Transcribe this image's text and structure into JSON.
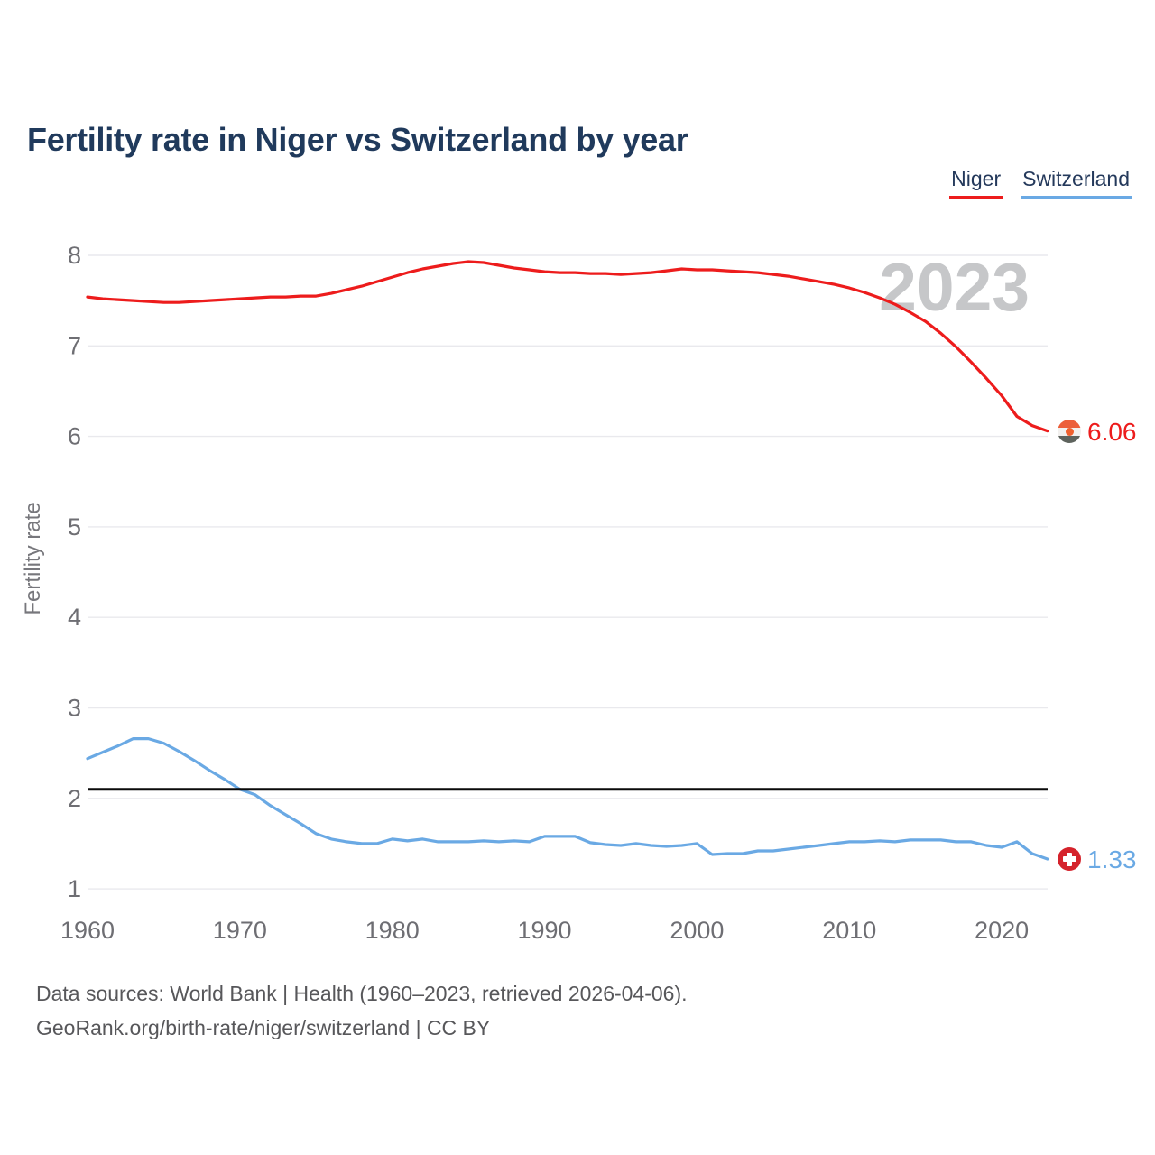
{
  "title": "Fertility rate in Niger vs Switzerland by year",
  "watermark": "2023",
  "legend": [
    {
      "label": "Niger",
      "color": "#ed1c1c"
    },
    {
      "label": "Switzerland",
      "color": "#6aa9e4"
    }
  ],
  "y_axis": {
    "title": "Fertility rate",
    "ticks": [
      8,
      7,
      6,
      5,
      4,
      3,
      2,
      1
    ]
  },
  "x_axis": {
    "ticks": [
      1960,
      1970,
      1980,
      1990,
      2000,
      2010,
      2020
    ]
  },
  "reference_line": {
    "value": 2.1,
    "color": "#0a0a0a"
  },
  "end_labels": [
    {
      "value": "6.06",
      "flag": "niger-flag-icon",
      "series": "Niger"
    },
    {
      "value": "1.33",
      "flag": "swiss-flag-icon",
      "series": "Switzerland"
    }
  ],
  "footer": {
    "line1": "Data sources: World Bank | Health (1960–2023, retrieved 2026-04-06).",
    "line2": "GeoRank.org/birth-rate/niger/switzerland | CC BY"
  },
  "chart_data": {
    "type": "line",
    "title": "Fertility rate in Niger vs Switzerland by year",
    "xlabel": "",
    "ylabel": "Fertility rate",
    "ylim": [
      1,
      8
    ],
    "xlim": [
      1960,
      2023
    ],
    "grid": "horizontal",
    "legend_position": "top-right",
    "x": [
      1960,
      1961,
      1962,
      1963,
      1964,
      1965,
      1966,
      1967,
      1968,
      1969,
      1970,
      1971,
      1972,
      1973,
      1974,
      1975,
      1976,
      1977,
      1978,
      1979,
      1980,
      1981,
      1982,
      1983,
      1984,
      1985,
      1986,
      1987,
      1988,
      1989,
      1990,
      1991,
      1992,
      1993,
      1994,
      1995,
      1996,
      1997,
      1998,
      1999,
      2000,
      2001,
      2002,
      2003,
      2004,
      2005,
      2006,
      2007,
      2008,
      2009,
      2010,
      2011,
      2012,
      2013,
      2014,
      2015,
      2016,
      2017,
      2018,
      2019,
      2020,
      2021,
      2022,
      2023
    ],
    "series": [
      {
        "name": "Niger",
        "color": "#ed1c1c",
        "last_value": 6.06,
        "values": [
          7.54,
          7.52,
          7.51,
          7.5,
          7.49,
          7.48,
          7.48,
          7.49,
          7.5,
          7.51,
          7.52,
          7.53,
          7.54,
          7.54,
          7.55,
          7.55,
          7.58,
          7.62,
          7.66,
          7.71,
          7.76,
          7.81,
          7.85,
          7.88,
          7.91,
          7.93,
          7.92,
          7.89,
          7.86,
          7.84,
          7.82,
          7.81,
          7.81,
          7.8,
          7.8,
          7.79,
          7.8,
          7.81,
          7.83,
          7.85,
          7.84,
          7.84,
          7.83,
          7.82,
          7.81,
          7.79,
          7.77,
          7.74,
          7.71,
          7.68,
          7.64,
          7.59,
          7.53,
          7.46,
          7.37,
          7.27,
          7.14,
          6.99,
          6.82,
          6.64,
          6.45,
          6.22,
          6.12,
          6.06
        ]
      },
      {
        "name": "Switzerland",
        "color": "#6aa9e4",
        "last_value": 1.33,
        "values": [
          2.44,
          2.51,
          2.58,
          2.66,
          2.66,
          2.61,
          2.52,
          2.42,
          2.31,
          2.21,
          2.1,
          2.04,
          1.92,
          1.82,
          1.72,
          1.61,
          1.55,
          1.52,
          1.5,
          1.5,
          1.55,
          1.53,
          1.55,
          1.52,
          1.52,
          1.52,
          1.53,
          1.52,
          1.53,
          1.52,
          1.58,
          1.58,
          1.58,
          1.51,
          1.49,
          1.48,
          1.5,
          1.48,
          1.47,
          1.48,
          1.5,
          1.38,
          1.39,
          1.39,
          1.42,
          1.42,
          1.44,
          1.46,
          1.48,
          1.5,
          1.52,
          1.52,
          1.53,
          1.52,
          1.54,
          1.54,
          1.54,
          1.52,
          1.52,
          1.48,
          1.46,
          1.52,
          1.39,
          1.33
        ]
      }
    ],
    "reference_line": 2.1
  }
}
